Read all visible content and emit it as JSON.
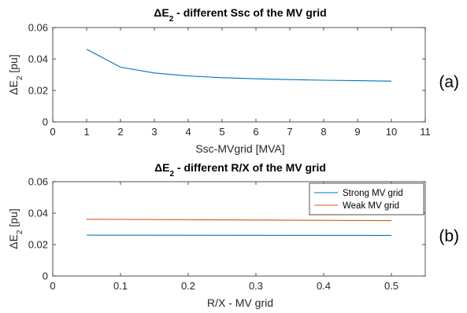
{
  "chart_data": [
    {
      "type": "line",
      "title": "ΔE2 - different Ssc of the MV grid",
      "title_parts": {
        "delta_e": "ΔE",
        "sub": "2",
        "rest": " - different Ssc of the MV grid"
      },
      "xlabel": "Ssc-MVgrid  [MVA]",
      "ylabel": "ΔE2 [pu]",
      "ylabel_parts": {
        "delta_e": "ΔE",
        "sub": "2",
        "unit": " [pu]"
      },
      "xlim": [
        0,
        11
      ],
      "ylim": [
        0,
        0.06
      ],
      "xticks": [
        "0",
        "1",
        "2",
        "3",
        "4",
        "5",
        "6",
        "7",
        "8",
        "9",
        "10",
        "11"
      ],
      "yticks": [
        "0",
        "0.02",
        "0.04",
        "0.06"
      ],
      "grid": false,
      "panel_label": "(a)",
      "series": [
        {
          "color": "#0072BD",
          "x": [
            1,
            2,
            3,
            4,
            5,
            6,
            7,
            8,
            9,
            10
          ],
          "y": [
            0.0462,
            0.0348,
            0.0311,
            0.0292,
            0.0281,
            0.0274,
            0.0269,
            0.0265,
            0.0262,
            0.0259
          ]
        }
      ]
    },
    {
      "type": "line",
      "title": "ΔE2 - different R/X of the MV grid",
      "title_parts": {
        "delta_e": "ΔE",
        "sub": "2",
        "rest": " - different R/X of the MV grid"
      },
      "xlabel": "R/X - MV grid",
      "ylabel": "ΔE2 [pu]",
      "ylabel_parts": {
        "delta_e": "ΔE",
        "sub": "2",
        "unit": " [pu]"
      },
      "xlim": [
        0,
        0.55
      ],
      "ylim": [
        0,
        0.06
      ],
      "xticks": [
        "0",
        "0.1",
        "0.2",
        "0.3",
        "0.4",
        "0.5"
      ],
      "yticks": [
        "0",
        "0.02",
        "0.04",
        "0.06"
      ],
      "grid": false,
      "panel_label": "(b)",
      "legend_position": "top-right",
      "series": [
        {
          "name": "Strong MV grid",
          "color": "#0072BD",
          "x": [
            0.05,
            0.5
          ],
          "y": [
            0.026,
            0.0258
          ]
        },
        {
          "name": "Weak MV grid",
          "color": "#D95319",
          "x": [
            0.05,
            0.5
          ],
          "y": [
            0.0361,
            0.0352
          ]
        }
      ]
    }
  ]
}
